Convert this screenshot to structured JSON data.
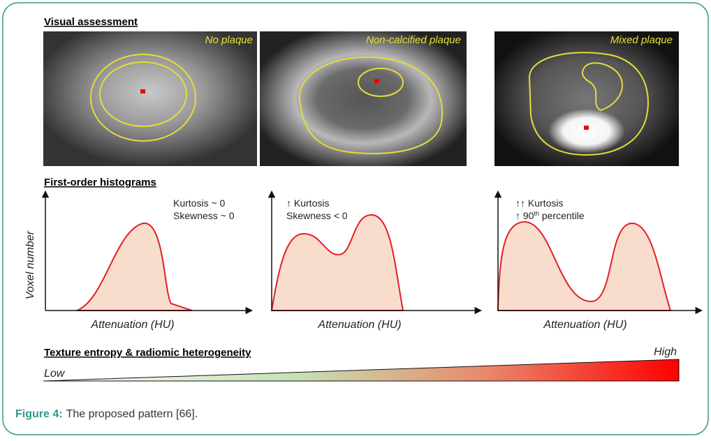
{
  "visual": {
    "title": "Visual assessment",
    "panels": [
      "No plaque",
      "Non-calcified plaque",
      "Mixed plaque"
    ]
  },
  "histograms": {
    "title": "First-order histograms",
    "y_label": "Voxel number",
    "panels": [
      {
        "x_label": "Attenuation (HU)",
        "notes": [
          "Kurtosis ~ 0",
          "Skewness ~ 0"
        ]
      },
      {
        "x_label": "Attenuation (HU)",
        "notes": [
          "↑ Kurtosis",
          "Skewness < 0"
        ]
      },
      {
        "x_label": "Attenuation (HU)",
        "notes": [
          "↑↑ Kurtosis",
          {
            "before": "↑ 90",
            "sup": "th",
            "after": " percentile"
          }
        ]
      }
    ]
  },
  "gradient": {
    "title": "Texture entropy & radiomic heterogeneity",
    "low": "Low",
    "high": "High"
  },
  "caption": {
    "label": "Figure 4:",
    "text": "The proposed pattern [66]."
  }
}
